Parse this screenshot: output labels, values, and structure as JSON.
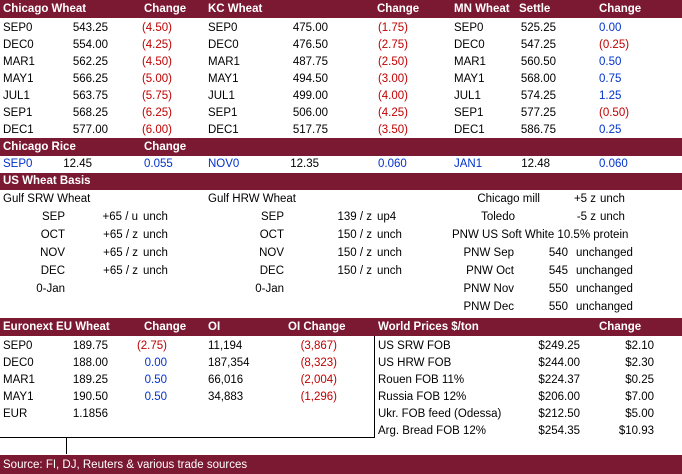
{
  "wheat_header": {
    "chicago": "Chicago Wheat",
    "change1": "Change",
    "kc": "KC Wheat",
    "change2": "Change",
    "mn": "MN Wheat",
    "settle": "Settle",
    "change3": "Change"
  },
  "chicago_wheat": [
    {
      "m": "SEP0",
      "p": "543.25",
      "c": "(4.50)"
    },
    {
      "m": "DEC0",
      "p": "554.00",
      "c": "(4.25)"
    },
    {
      "m": "MAR1",
      "p": "562.25",
      "c": "(4.50)"
    },
    {
      "m": "MAY1",
      "p": "566.25",
      "c": "(5.00)"
    },
    {
      "m": "JUL1",
      "p": "563.75",
      "c": "(5.75)"
    },
    {
      "m": "SEP1",
      "p": "568.25",
      "c": "(6.25)"
    },
    {
      "m": "DEC1",
      "p": "577.00",
      "c": "(6.00)"
    }
  ],
  "kc_wheat": [
    {
      "m": "SEP0",
      "p": "475.00",
      "c": "(1.75)"
    },
    {
      "m": "DEC0",
      "p": "476.50",
      "c": "(2.75)"
    },
    {
      "m": "MAR1",
      "p": "487.75",
      "c": "(2.50)"
    },
    {
      "m": "MAY1",
      "p": "494.50",
      "c": "(3.00)"
    },
    {
      "m": "JUL1",
      "p": "499.00",
      "c": "(4.00)"
    },
    {
      "m": "SEP1",
      "p": "506.00",
      "c": "(4.25)"
    },
    {
      "m": "DEC1",
      "p": "517.75",
      "c": "(3.50)"
    }
  ],
  "mn_wheat": [
    {
      "m": "SEP0",
      "p": "525.25",
      "c": "0.00",
      "color": "blue"
    },
    {
      "m": "DEC0",
      "p": "547.25",
      "c": "(0.25)",
      "color": "red"
    },
    {
      "m": "MAR1",
      "p": "560.50",
      "c": "0.50",
      "color": "blue"
    },
    {
      "m": "MAY1",
      "p": "568.00",
      "c": "0.75",
      "color": "blue"
    },
    {
      "m": "JUL1",
      "p": "574.25",
      "c": "1.25",
      "color": "blue"
    },
    {
      "m": "SEP1",
      "p": "577.25",
      "c": "(0.50)",
      "color": "red"
    },
    {
      "m": "DEC1",
      "p": "586.75",
      "c": "0.25",
      "color": "blue"
    }
  ],
  "rice": {
    "title": "Chicago Rice",
    "change": "Change",
    "row": [
      {
        "m": "SEP0",
        "p": "12.45",
        "c": "0.055"
      },
      {
        "m": "NOV0",
        "p": "12.35",
        "c": "0.060"
      },
      {
        "m": "JAN1",
        "p": "12.48",
        "c": "0.060"
      }
    ]
  },
  "basis": {
    "title": "US Wheat Basis",
    "gulf_srw": "Gulf SRW Wheat",
    "gulf_hrw": "Gulf HRW Wheat",
    "srw_rows": [
      {
        "m": "SEP",
        "v": "+65 / u",
        "c": "unch"
      },
      {
        "m": "OCT",
        "v": "+65 / z",
        "c": "unch"
      },
      {
        "m": "NOV",
        "v": "+65 / z",
        "c": "unch"
      },
      {
        "m": "DEC",
        "v": "+65 / z",
        "c": "unch"
      },
      {
        "m": "0-Jan",
        "v": "",
        "c": ""
      }
    ],
    "hrw_rows": [
      {
        "m": "SEP",
        "v": "139 / z",
        "c": "up4"
      },
      {
        "m": "OCT",
        "v": "150 / z",
        "c": "unch"
      },
      {
        "m": "NOV",
        "v": "150 / z",
        "c": "unch"
      },
      {
        "m": "DEC",
        "v": "150 / z",
        "c": "unch"
      },
      {
        "m": "0-Jan",
        "v": "",
        "c": ""
      }
    ],
    "chicago_mill": {
      "label": "Chicago mill",
      "v": "+5 z",
      "c": "unch"
    },
    "toledo": {
      "label": "Toledo",
      "v": "-5 z",
      "c": "unch"
    },
    "pnw_title": "PNW US Soft White 10.5% protein",
    "pnw_rows": [
      {
        "m": "PNW Sep",
        "v": "540",
        "c": "unchanged"
      },
      {
        "m": "PNW Oct",
        "v": "545",
        "c": "unchanged"
      },
      {
        "m": "PNW Nov",
        "v": "550",
        "c": "unchanged"
      },
      {
        "m": "PNW Dec",
        "v": "550",
        "c": "unchanged"
      }
    ]
  },
  "euronext": {
    "title": "Euronext EU Wheat",
    "change": "Change",
    "oi": "OI",
    "oi_change": "OI Change",
    "rows": [
      {
        "m": "SEP0",
        "p": "189.75",
        "c": "(2.75)",
        "cc": "red",
        "oi": "11,194",
        "oic": "(3,867)"
      },
      {
        "m": "DEC0",
        "p": "188.00",
        "c": "0.00",
        "cc": "blue",
        "oi": "187,354",
        "oic": "(8,323)"
      },
      {
        "m": "MAR1",
        "p": "189.25",
        "c": "0.50",
        "cc": "blue",
        "oi": "66,016",
        "oic": "(2,004)"
      },
      {
        "m": "MAY1",
        "p": "190.50",
        "c": "0.50",
        "cc": "blue",
        "oi": "34,883",
        "oic": "(1,296)"
      }
    ],
    "eur_label": "EUR",
    "eur_value": "1.1856"
  },
  "world": {
    "title": "World Prices $/ton",
    "change": "Change",
    "rows": [
      {
        "n": "US SRW FOB",
        "p": "$249.25",
        "c": "$2.10"
      },
      {
        "n": "US HRW FOB",
        "p": "$244.00",
        "c": "$2.30"
      },
      {
        "n": "Rouen FOB 11%",
        "p": "$224.37",
        "c": "$0.25"
      },
      {
        "n": "Russia FOB 12%",
        "p": "$206.00",
        "c": "$7.00"
      },
      {
        "n": "Ukr. FOB feed (Odessa)",
        "p": "$212.50",
        "c": "$5.00"
      },
      {
        "n": "Arg. Bread FOB 12%",
        "p": "$254.35",
        "c": "$10.93"
      }
    ]
  },
  "footer": {
    "source": "Source: FI, DJ, Reuters & various trade sources"
  },
  "colors": {
    "header_bg": "#7b1932",
    "neg": "#c00000",
    "pos": "#0033cc"
  }
}
